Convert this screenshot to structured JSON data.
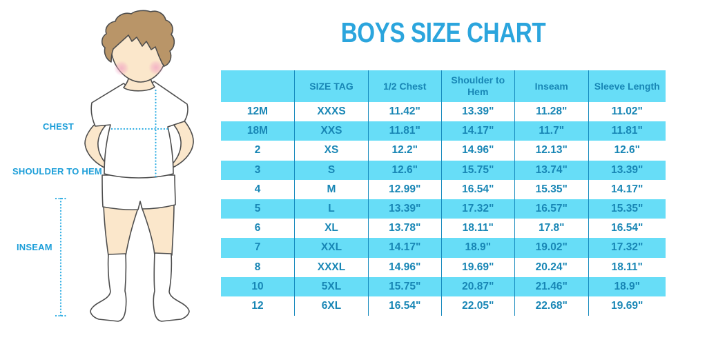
{
  "page": {
    "background": "#ffffff"
  },
  "title": {
    "text": "BOYS SIZE CHART",
    "color": "#2BA5DD"
  },
  "figure": {
    "description": "illustration of a boy wearing a white t-shirt, white shorts and white knee socks, annotated with dotted measurement lines",
    "labels": {
      "chest": "CHEST",
      "shoulder_to_hem": "SHOULDER TO HEM",
      "inseam": "INSEAM"
    },
    "colors": {
      "label": "#1E9FD9",
      "measure_line": "#29ABE2",
      "skin": "#FBE7CB",
      "hair": "#B99568",
      "outline": "#4D4D4D",
      "blush": "#F2A9C4",
      "clothing": "#FFFFFF"
    }
  },
  "chart_data": {
    "type": "table",
    "title": "BOYS SIZE CHART",
    "columns": [
      "",
      "SIZE TAG",
      "1/2 Chest",
      "Shoulder to Hem",
      "Inseam",
      "Sleeve Length"
    ],
    "rows": [
      [
        "12M",
        "XXXS",
        "11.42\"",
        "13.39\"",
        "11.28\"",
        "11.02\""
      ],
      [
        "18M",
        "XXS",
        "11.81\"",
        "14.17\"",
        "11.7\"",
        "11.81\""
      ],
      [
        "2",
        "XS",
        "12.2\"",
        "14.96\"",
        "12.13\"",
        "12.6\""
      ],
      [
        "3",
        "S",
        "12.6\"",
        "15.75\"",
        "13.74\"",
        "13.39\""
      ],
      [
        "4",
        "M",
        "12.99\"",
        "16.54\"",
        "15.35\"",
        "14.17\""
      ],
      [
        "5",
        "L",
        "13.39\"",
        "17.32\"",
        "16.57\"",
        "15.35\""
      ],
      [
        "6",
        "XL",
        "13.78\"",
        "18.11\"",
        "17.8\"",
        "16.54\""
      ],
      [
        "7",
        "XXL",
        "14.17\"",
        "18.9\"",
        "19.02\"",
        "17.32\""
      ],
      [
        "8",
        "XXXL",
        "14.96\"",
        "19.69\"",
        "20.24\"",
        "18.11\""
      ],
      [
        "10",
        "5XL",
        "15.75\"",
        "20.87\"",
        "21.46\"",
        "18.9\""
      ],
      [
        "12",
        "6XL",
        "16.54\"",
        "22.05\"",
        "22.68\"",
        "19.69\""
      ]
    ],
    "style": {
      "stripe_color": "#67DDF7",
      "text_color": "#1886B5",
      "grid_color": "#1589BD",
      "gridlines": "vertical only",
      "row_fill_pattern": "header cyan, data rows alternate white / cyan"
    }
  }
}
